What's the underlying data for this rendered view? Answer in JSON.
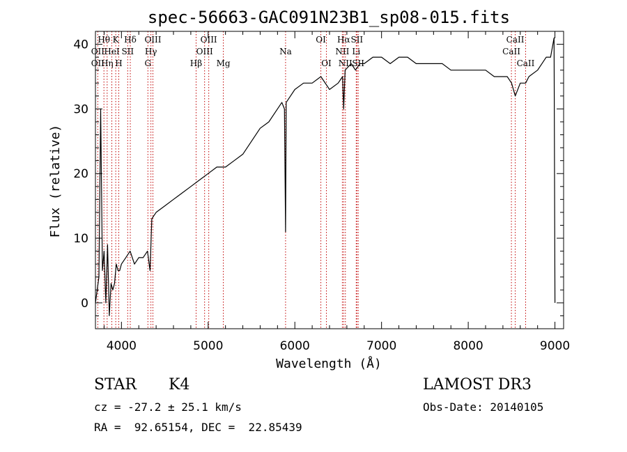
{
  "chart_data": {
    "type": "line",
    "title": "spec-56663-GAC091N23B1_sp08-015.fits",
    "xlabel": "Wavelength (Å)",
    "ylabel": "Flux (relative)",
    "xlim": [
      3700,
      9100
    ],
    "ylim": [
      -4,
      42
    ],
    "xticks": [
      4000,
      5000,
      6000,
      7000,
      8000,
      9000
    ],
    "yticks": [
      0,
      10,
      20,
      30,
      40
    ],
    "grid": false,
    "series": [
      {
        "name": "spectrum",
        "x": [
          3700,
          3720,
          3740,
          3760,
          3780,
          3800,
          3820,
          3840,
          3860,
          3880,
          3900,
          3920,
          3940,
          3960,
          3980,
          4000,
          4050,
          4100,
          4150,
          4200,
          4250,
          4300,
          4330,
          4350,
          4400,
          4500,
          4600,
          4700,
          4800,
          4900,
          5000,
          5100,
          5200,
          5300,
          5400,
          5500,
          5600,
          5700,
          5800,
          5850,
          5880,
          5893,
          5900,
          5950,
          6000,
          6100,
          6200,
          6300,
          6400,
          6500,
          6550,
          6563,
          6580,
          6650,
          6700,
          6750,
          6800,
          6900,
          7000,
          7100,
          7200,
          7300,
          7400,
          7500,
          7600,
          7700,
          7800,
          7900,
          8000,
          8100,
          8200,
          8300,
          8400,
          8450,
          8500,
          8542,
          8600,
          8662,
          8700,
          8800,
          8900,
          8950,
          8990,
          9000
        ],
        "y": [
          0,
          2,
          4,
          30,
          5,
          8,
          0,
          9,
          -2,
          3,
          2,
          3,
          6,
          5,
          5,
          6,
          7,
          8,
          6,
          7,
          7,
          8,
          5,
          13,
          14,
          15,
          16,
          17,
          18,
          19,
          20,
          21,
          21,
          22,
          23,
          25,
          27,
          28,
          30,
          31,
          30,
          11,
          31,
          32,
          33,
          34,
          34,
          35,
          33,
          34,
          35,
          30,
          36,
          37,
          36,
          37,
          37,
          38,
          38,
          37,
          38,
          38,
          37,
          37,
          37,
          37,
          36,
          36,
          36,
          36,
          36,
          35,
          35,
          35,
          34,
          32,
          34,
          34,
          35,
          36,
          38,
          38,
          41,
          0
        ]
      }
    ],
    "line_markers": [
      {
        "wavelength": 3727,
        "label": "OII",
        "row": 2
      },
      {
        "wavelength": 3727,
        "label": "OII",
        "row": 3
      },
      {
        "wavelength": 3798,
        "label": "Hθ",
        "row": 1
      },
      {
        "wavelength": 3835,
        "label": "Hη",
        "row": 3
      },
      {
        "wavelength": 3889,
        "label": "HeI",
        "row": 2
      },
      {
        "wavelength": 3934,
        "label": "K",
        "row": 1
      },
      {
        "wavelength": 3969,
        "label": "H",
        "row": 3
      },
      {
        "wavelength": 4072,
        "label": "SII",
        "row": 2
      },
      {
        "wavelength": 4102,
        "label": "Hδ",
        "row": 1
      },
      {
        "wavelength": 4305,
        "label": "G",
        "row": 3
      },
      {
        "wavelength": 4340,
        "label": "Hγ",
        "row": 2
      },
      {
        "wavelength": 4363,
        "label": "OIII",
        "row": 1
      },
      {
        "wavelength": 4861,
        "label": "Hβ",
        "row": 3
      },
      {
        "wavelength": 4959,
        "label": "OIII",
        "row": 2
      },
      {
        "wavelength": 5007,
        "label": "OIII",
        "row": 1
      },
      {
        "wavelength": 5175,
        "label": "Mg",
        "row": 3
      },
      {
        "wavelength": 5893,
        "label": "Na",
        "row": 2
      },
      {
        "wavelength": 6300,
        "label": "OI",
        "row": 1
      },
      {
        "wavelength": 6364,
        "label": "OI",
        "row": 3
      },
      {
        "wavelength": 6548,
        "label": "NII",
        "row": 2
      },
      {
        "wavelength": 6563,
        "label": "Hα",
        "row": 1
      },
      {
        "wavelength": 6583,
        "label": "NII",
        "row": 3
      },
      {
        "wavelength": 6708,
        "label": "Li",
        "row": 2
      },
      {
        "wavelength": 6716,
        "label": "SII",
        "row": 1
      },
      {
        "wavelength": 6731,
        "label": "SII",
        "row": 3
      },
      {
        "wavelength": 8498,
        "label": "CaII",
        "row": 2
      },
      {
        "wavelength": 8542,
        "label": "CaII",
        "row": 1
      },
      {
        "wavelength": 8662,
        "label": "CaII",
        "row": 3
      }
    ]
  },
  "info": {
    "object_class": "STAR",
    "subclass": "K4",
    "redshift_line": "cz = -27.2 ± 25.1 km/s",
    "coords_line": "RA =  92.65154, DEC =  22.85439",
    "survey": "LAMOST DR3",
    "obs_date_line": "Obs-Date: 20140105"
  }
}
